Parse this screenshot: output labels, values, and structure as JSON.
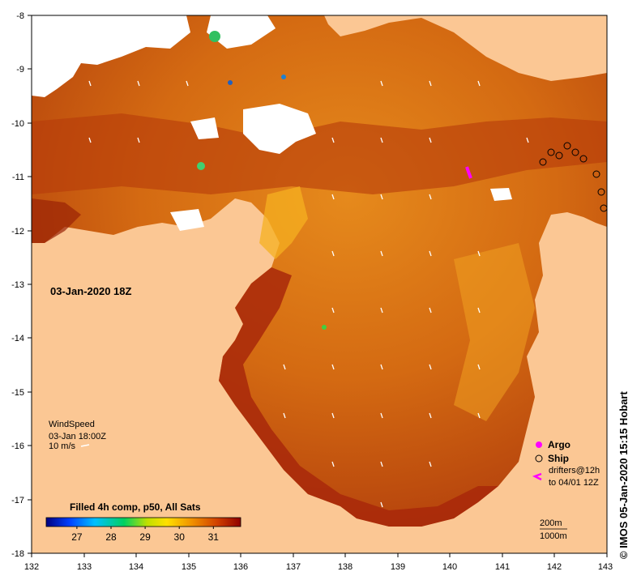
{
  "map": {
    "title_time": "03-Jan-2020 18Z",
    "credit": "© IMOS 05-Jan-2020 15:15 Hobart",
    "colors": {
      "land": "#fbc794",
      "sea_warm": "#d66a10",
      "sea_hot": "#b02a05",
      "cloud": "#ffffff",
      "frame": "#000000"
    }
  },
  "axes": {
    "x_ticks": [
      "132",
      "133",
      "134",
      "135",
      "136",
      "137",
      "138",
      "139",
      "140",
      "141",
      "142",
      "143"
    ],
    "y_ticks": [
      "-8",
      "-9",
      "-10",
      "-11",
      "-12",
      "-13",
      "-14",
      "-15",
      "-16",
      "-17",
      "-18"
    ],
    "x_range": [
      132,
      143
    ],
    "y_range": [
      -18,
      -8
    ]
  },
  "wind": {
    "title": "WindSpeed",
    "time": "03-Jan 18:00Z",
    "scale": "10 m/s"
  },
  "colorbar": {
    "title": "Filled 4h comp, p50, All Sats",
    "ticks": [
      "27",
      "28",
      "29",
      "30",
      "31"
    ],
    "range": [
      26.1,
      31.8
    ]
  },
  "legend": {
    "argo": "Argo",
    "ship": "Ship",
    "drifters_line1": "drifters@12h",
    "drifters_line2": "to 04/01 12Z"
  },
  "contours": {
    "c200": "200m",
    "c1000": "1000m"
  }
}
